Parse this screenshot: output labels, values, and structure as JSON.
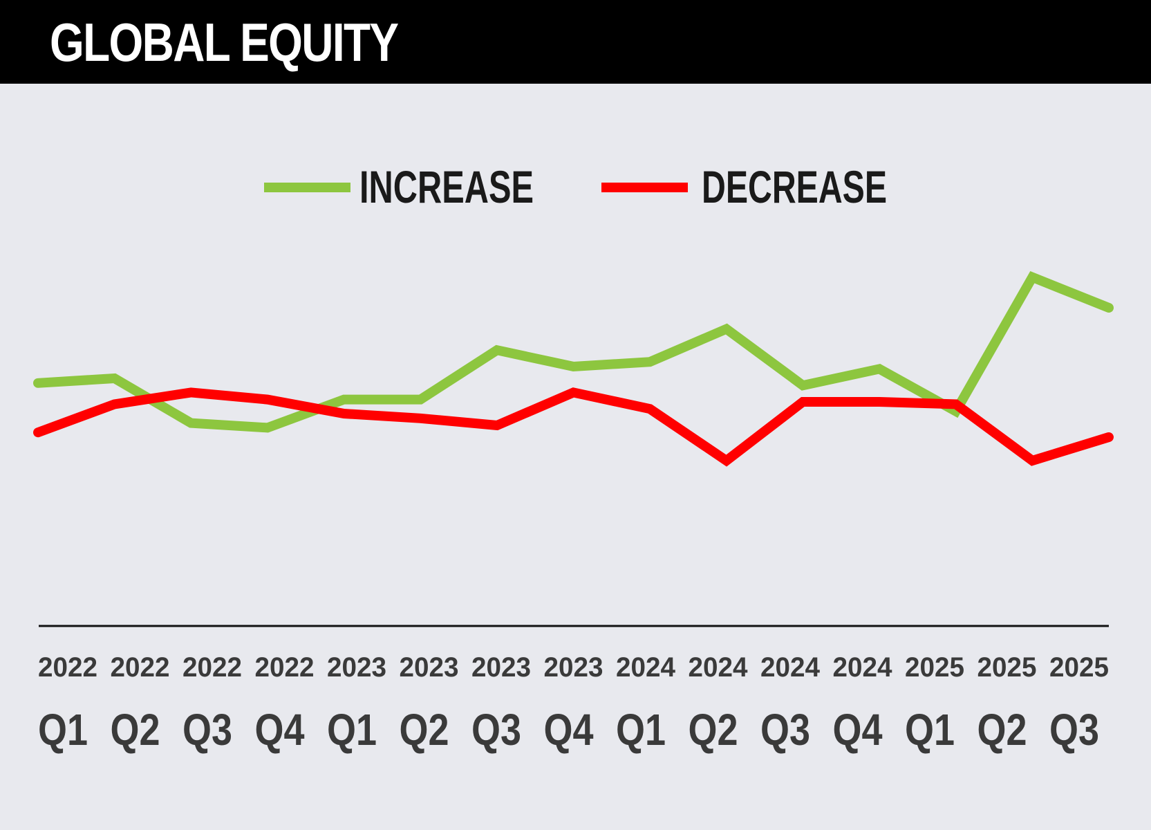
{
  "title": "GLOBAL EQUITY",
  "chart_data": {
    "type": "line",
    "title": "GLOBAL EQUITY",
    "xlabel": "",
    "ylabel": "",
    "grid": false,
    "legend": "top-center",
    "categories": [
      {
        "year": "2022",
        "quarter": "Q1"
      },
      {
        "year": "2022",
        "quarter": "Q2"
      },
      {
        "year": "2022",
        "quarter": "Q3"
      },
      {
        "year": "2022",
        "quarter": "Q4"
      },
      {
        "year": "2023",
        "quarter": "Q1"
      },
      {
        "year": "2023",
        "quarter": "Q2"
      },
      {
        "year": "2023",
        "quarter": "Q3"
      },
      {
        "year": "2023",
        "quarter": "Q4"
      },
      {
        "year": "2024",
        "quarter": "Q1"
      },
      {
        "year": "2024",
        "quarter": "Q2"
      },
      {
        "year": "2024",
        "quarter": "Q3"
      },
      {
        "year": "2024",
        "quarter": "Q4"
      },
      {
        "year": "2025",
        "quarter": "Q1"
      },
      {
        "year": "2025",
        "quarter": "Q2"
      },
      {
        "year": "2025",
        "quarter": "Q3"
      }
    ],
    "ylim": [
      0,
      100
    ],
    "series": [
      {
        "name": "INCREASE",
        "color": "#8dc63f",
        "values": [
          43,
          45,
          26,
          24,
          36,
          36,
          57,
          50,
          52,
          66,
          42,
          49,
          31,
          88,
          75
        ]
      },
      {
        "name": "DECREASE",
        "color": "#ff0000",
        "values": [
          22,
          34,
          39,
          36,
          30,
          28,
          25,
          39,
          32,
          10,
          35,
          35,
          34,
          10,
          20
        ]
      }
    ]
  }
}
